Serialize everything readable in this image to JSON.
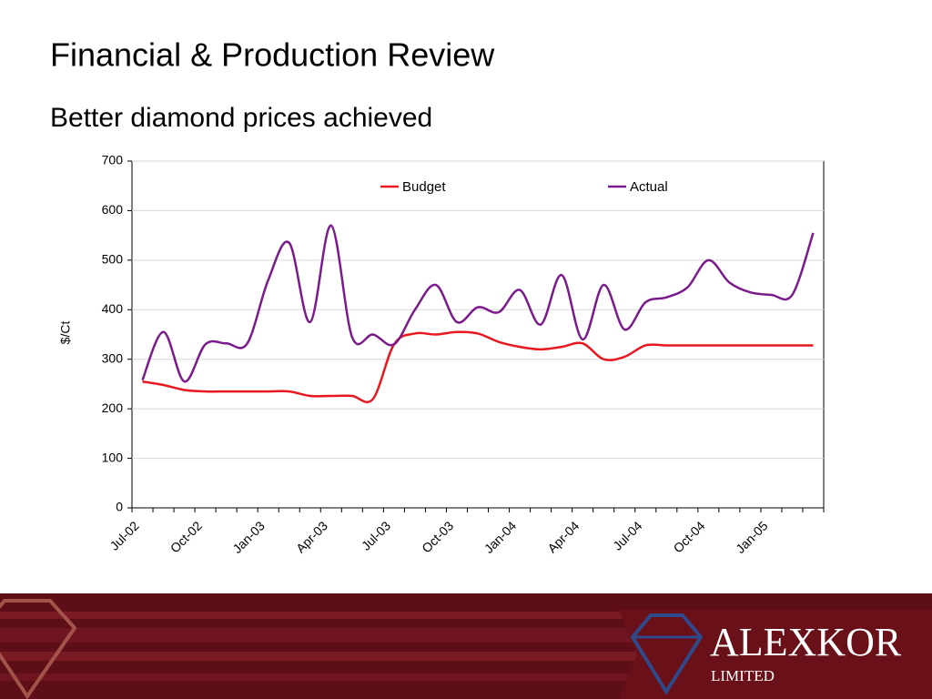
{
  "header": {
    "title": "Financial & Production Review",
    "subtitle": "Better diamond prices achieved"
  },
  "chart_data": {
    "type": "line",
    "ylabel": "$/Ct",
    "categories": [
      "Jul-02",
      null,
      null,
      "Oct-02",
      null,
      null,
      "Jan-03",
      null,
      null,
      "Apr-03",
      null,
      null,
      "Jul-03",
      null,
      null,
      "Oct-03",
      null,
      null,
      "Jan-04",
      null,
      null,
      "Apr-04",
      null,
      null,
      "Jul-04",
      null,
      null,
      "Oct-04",
      null,
      null,
      "Jan-05",
      null,
      null
    ],
    "series": [
      {
        "name": "Budget",
        "color": "#e8181e",
        "values": [
          255,
          248,
          238,
          235,
          235,
          235,
          235,
          235,
          226,
          226,
          226,
          220,
          330,
          352,
          350,
          355,
          352,
          335,
          325,
          320,
          325,
          332,
          300,
          305,
          328,
          328,
          328,
          328,
          328,
          328,
          328,
          328,
          328
        ]
      },
      {
        "name": "Actual",
        "color": "#7b1a8c",
        "values": [
          258,
          355,
          255,
          330,
          332,
          332,
          460,
          535,
          375,
          570,
          345,
          350,
          330,
          400,
          450,
          375,
          405,
          395,
          440,
          370,
          470,
          340,
          450,
          360,
          415,
          425,
          445,
          500,
          455,
          435,
          430,
          430,
          555
        ]
      }
    ],
    "ylim": [
      0,
      700
    ],
    "yticks": [
      0,
      100,
      200,
      300,
      400,
      500,
      600,
      700
    ],
    "grid": true,
    "legend": "top"
  },
  "footer": {
    "brand": "ALEXKOR",
    "tagline": "LIMITED"
  }
}
